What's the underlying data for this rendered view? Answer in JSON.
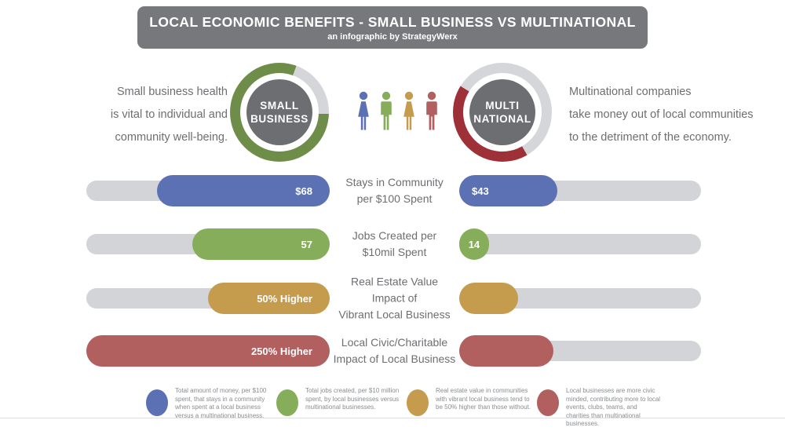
{
  "header": {
    "title": "LOCAL ECONOMIC BENEFITS - SMALL BUSINESS VS MULTINATIONAL",
    "subtitle": "an infographic by StrategyWerx"
  },
  "intro_left": {
    "lines": [
      "Small business health",
      "is vital to individual and",
      "community well-being."
    ]
  },
  "intro_right": {
    "lines": [
      "Multinational companies",
      "take money out of local communities",
      "to the detriment of the economy."
    ]
  },
  "donut_left": {
    "label_lines": [
      "SMALL",
      "BUSINESS"
    ],
    "start_deg": 92,
    "fill_deg": 288,
    "fill_color": "#6e8d49",
    "track_color": "#d4d6d9"
  },
  "donut_right": {
    "label_lines": [
      "MULTI",
      "NATIONAL"
    ],
    "start_deg": 150,
    "fill_deg": 152,
    "fill_color": "#9e3038",
    "track_color": "#d4d6d9"
  },
  "people": [
    {
      "type": "female",
      "color": "#5b71b3"
    },
    {
      "type": "male",
      "color": "#86ae5a"
    },
    {
      "type": "female",
      "color": "#c59b4e"
    },
    {
      "type": "male",
      "color": "#b25f5f"
    }
  ],
  "rows": [
    {
      "label_lines": [
        "Stays in Community",
        "per $100 Spent"
      ],
      "left_value": "$68",
      "right_value": "$43",
      "color": "#5b71b3",
      "left_fill_pct": 71,
      "right_fill_pct": 40.5
    },
    {
      "label_lines": [
        "Jobs Created per",
        "$10mil Spent"
      ],
      "left_value": "57",
      "right_value": "14",
      "color": "#86ae5a",
      "left_fill_pct": 56.5,
      "right_fill_pct": 12.3
    },
    {
      "label_lines": [
        "Real Estate Value",
        "Impact of",
        "Vibrant Local Business"
      ],
      "left_value": "50% Higher",
      "right_value": "",
      "color": "#c59b4e",
      "left_fill_pct": 50,
      "right_fill_pct": 24.4
    },
    {
      "label_lines": [
        "Local Civic/Charitable",
        "Impact of Local Business"
      ],
      "left_value": "250% Higher",
      "right_value": "",
      "color": "#b25f5f",
      "left_fill_pct": 100,
      "right_fill_pct": 39
    }
  ],
  "legend": {
    "items": [
      {
        "color": "#5b71b3",
        "text": "Total amount of money, per $100 spent, that stays in a community when spent at a local business versus a multinational business."
      },
      {
        "color": "#86ae5a",
        "text": "Total jobs created, per $10 million spent, by local businesses versus multinational businesses."
      },
      {
        "color": "#c59b4e",
        "text": "Real estate value in communities with vibrant local business tend to be 50% higher than those without."
      },
      {
        "color": "#b25f5f",
        "text": "Local businesses are more civic minded, contributing more to local events, clubs, teams, and charities than multinational businesses."
      }
    ]
  },
  "chart_data": {
    "type": "bar",
    "title": "LOCAL ECONOMIC BENEFITS - SMALL BUSINESS VS MULTINATIONAL",
    "subtitle": "an infographic by StrategyWerx",
    "categories": [
      "Stays in Community per $100 Spent",
      "Jobs Created per $10mil Spent",
      "Real Estate Value Impact of Vibrant Local Business",
      "Local Civic/Charitable Impact of Local Business"
    ],
    "series": [
      {
        "name": "Small Business",
        "values": [
          "$68",
          "57",
          "50% Higher",
          "250% Higher"
        ],
        "fill_fractions": [
          0.71,
          0.565,
          0.5,
          1.0
        ]
      },
      {
        "name": "Multinational",
        "values": [
          "$43",
          "14",
          null,
          null
        ],
        "fill_fractions": [
          0.405,
          0.123,
          0.244,
          0.39
        ]
      }
    ],
    "gauges": [
      {
        "label": "SMALL BUSINESS",
        "fill_pct": 80,
        "color": "#6e8d49"
      },
      {
        "label": "MULTI NATIONAL",
        "fill_pct": 42,
        "color": "#9e3038"
      }
    ],
    "legend_position": "bottom",
    "grid": false
  }
}
